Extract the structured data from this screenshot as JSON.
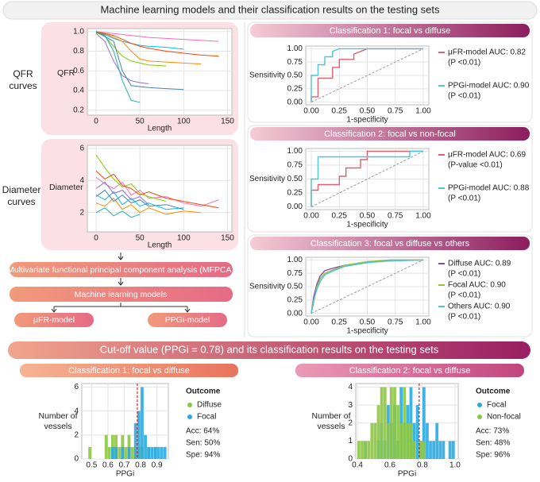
{
  "title": "Machine learning models and their classification results on the testing sets",
  "left": {
    "qfr_label": "QFR curves",
    "diameter_label": "Diameter curves",
    "steps": [
      "Multivariate functional principal component analysis (MFPCA)",
      "Machine learning models"
    ],
    "models": [
      "μFR-model",
      "PPGi-model"
    ]
  },
  "bottom": {
    "title": "Cut-off value (PPGi = 0.78) and its classification results on the testing sets"
  },
  "chart_data": [
    {
      "type": "line",
      "xlabel": "Length",
      "ylabel": "QFR",
      "grid": true,
      "x": [
        0,
        10,
        20,
        30,
        40,
        50,
        60,
        80,
        100,
        120,
        140
      ],
      "xlim": [
        -10,
        155
      ],
      "xticks": [
        0,
        50,
        100,
        150
      ],
      "ylim": [
        0.15,
        1.03
      ],
      "yticks": [
        {
          "value": 1,
          "label": "1.0"
        },
        0.8,
        0.6,
        0.4,
        0.2
      ],
      "series": [
        {
          "color": "#ff69b4",
          "values": [
            1,
            0.99,
            0.98,
            0.97,
            0.96,
            0.95,
            0.94,
            0.93,
            0.92,
            0.91,
            0.9
          ]
        },
        {
          "color": "#00bfff",
          "values": [
            1,
            0.97,
            0.93,
            0.9,
            0.88,
            0.86,
            0.85,
            0.84,
            0.82,
            null,
            null
          ]
        },
        {
          "color": "#7fcf00",
          "values": [
            0.99,
            0.95,
            0.85,
            0.75,
            0.7,
            0.68,
            0.66,
            0.65,
            null,
            null,
            null
          ]
        },
        {
          "color": "#ff8c00",
          "values": [
            1,
            0.98,
            0.94,
            0.9,
            0.8,
            0.72,
            0.7,
            0.69,
            0.68,
            0.67,
            null
          ]
        },
        {
          "color": "#9370db",
          "values": [
            0.98,
            0.9,
            0.7,
            0.55,
            0.5,
            0.48,
            0.47,
            null,
            null,
            null,
            null
          ]
        },
        {
          "color": "#20b2aa",
          "values": [
            1,
            0.96,
            0.8,
            0.5,
            0.3,
            0.28,
            null,
            null,
            null,
            null,
            null
          ]
        },
        {
          "color": "#ff4500",
          "values": [
            0.99,
            0.98,
            0.96,
            0.92,
            0.88,
            0.85,
            0.83,
            0.8,
            0.78,
            0.76,
            0.75
          ]
        },
        {
          "color": "#4682b4",
          "values": [
            1,
            0.95,
            0.9,
            0.6,
            0.45,
            0.44,
            0.43,
            0.42,
            0.41,
            null,
            null
          ]
        }
      ]
    },
    {
      "type": "line",
      "xlabel": "Length",
      "ylabel": "Diameter",
      "grid": true,
      "x": [
        0,
        10,
        20,
        30,
        40,
        50,
        60,
        80,
        100,
        120,
        140
      ],
      "xlim": [
        -10,
        155
      ],
      "xticks": [
        0,
        50,
        100,
        150
      ],
      "ylim": [
        0.8,
        6.2
      ],
      "yticks": [
        6,
        4,
        2
      ],
      "series": [
        {
          "color": "#ff69b4",
          "values": [
            4.2,
            3.8,
            3.5,
            3.9,
            3.1,
            3.4,
            2.9,
            3.0,
            2.6,
            2.4,
            2.8
          ]
        },
        {
          "color": "#00bfff",
          "values": [
            3.1,
            2.8,
            3.3,
            2.5,
            2.9,
            2.4,
            2.6,
            2.2,
            2.3,
            null,
            null
          ]
        },
        {
          "color": "#7fcf00",
          "values": [
            5.6,
            4.8,
            4.1,
            3.6,
            3.8,
            3.2,
            3.0,
            2.7,
            null,
            null,
            null
          ]
        },
        {
          "color": "#ff8c00",
          "values": [
            2.6,
            2.4,
            2.9,
            2.2,
            2.5,
            2.0,
            2.3,
            1.9,
            2.1,
            2.0,
            null
          ]
        },
        {
          "color": "#9370db",
          "values": [
            3.5,
            3.9,
            3.2,
            3.4,
            2.8,
            3.0,
            2.5,
            null,
            null,
            null,
            null
          ]
        },
        {
          "color": "#20b2aa",
          "values": [
            2.0,
            2.3,
            1.8,
            2.1,
            1.7,
            1.9,
            null,
            null,
            null,
            null,
            null
          ]
        },
        {
          "color": "#ff4500",
          "values": [
            4.6,
            4.1,
            4.4,
            3.7,
            3.5,
            3.1,
            3.3,
            2.9,
            2.7,
            2.5,
            2.3
          ]
        },
        {
          "color": "#4682b4",
          "values": [
            3.0,
            3.4,
            2.7,
            3.1,
            2.6,
            2.8,
            2.4,
            2.5,
            2.2,
            null,
            null
          ]
        }
      ]
    },
    {
      "type": "line",
      "title": "Classification 1: focal vs diffuse",
      "xlabel": "1-specificity",
      "ylabel": "Sensitivity",
      "grid": true,
      "diagonal": true,
      "legend": "right",
      "xlim": [
        -0.05,
        1.05
      ],
      "xticks": [
        {
          "value": 0,
          "label": "0.00"
        },
        0.25,
        {
          "value": 0.5,
          "label": "0.50"
        },
        0.75,
        {
          "value": 1,
          "label": "1.00"
        }
      ],
      "ylim": [
        -0.05,
        1.05
      ],
      "yticks": [
        {
          "value": 0,
          "label": "0.00"
        },
        0.25,
        {
          "value": 0.5,
          "label": "0.50"
        },
        0.75,
        {
          "value": 1,
          "label": "1.00"
        }
      ],
      "series": [
        {
          "name": "μFR-model AUC: 0.82",
          "note": "(P <0.01)",
          "color": "#d9626f",
          "x": [
            0,
            0,
            0.06,
            0.06,
            0.19,
            0.19,
            0.25,
            0.25,
            0.38,
            0.38,
            0.5,
            1
          ],
          "values": [
            0,
            0.1,
            0.1,
            0.45,
            0.45,
            0.65,
            0.65,
            0.8,
            0.8,
            0.9,
            1,
            1
          ]
        },
        {
          "name": "PPGi-model AUC: 0.90",
          "note": "(P <0.01)",
          "color": "#4fc3d8",
          "x": [
            0,
            0,
            0.06,
            0.06,
            0.12,
            0.12,
            0.19,
            0.19,
            0.25,
            1
          ],
          "values": [
            0,
            0.5,
            0.5,
            0.7,
            0.7,
            0.85,
            0.85,
            0.95,
            1,
            1
          ]
        }
      ]
    },
    {
      "type": "line",
      "title": "Classification 2: focal vs non-focal",
      "xlabel": "1-specificity",
      "ylabel": "Sensitivity",
      "grid": true,
      "diagonal": true,
      "legend": "right",
      "xlim": [
        -0.05,
        1.05
      ],
      "xticks": [
        {
          "value": 0,
          "label": "0.00"
        },
        0.25,
        {
          "value": 0.5,
          "label": "0.50"
        },
        0.75,
        {
          "value": 1,
          "label": "1.00"
        }
      ],
      "ylim": [
        -0.05,
        1.05
      ],
      "yticks": [
        {
          "value": 0,
          "label": "0.00"
        },
        0.25,
        {
          "value": 0.5,
          "label": "0.50"
        },
        0.75,
        {
          "value": 1,
          "label": "1.00"
        }
      ],
      "series": [
        {
          "name": "μFR-model AUC: 0.69",
          "note": "(P-value <0.01)",
          "color": "#d9626f",
          "x": [
            0,
            0,
            0.06,
            0.06,
            0.25,
            0.25,
            0.31,
            0.31,
            0.44,
            0.44,
            0.5,
            0.5,
            1
          ],
          "values": [
            0,
            0.3,
            0.3,
            0.4,
            0.4,
            0.55,
            0.55,
            0.7,
            0.7,
            0.85,
            0.85,
            1,
            1
          ]
        },
        {
          "name": "PPGi-model AUC: 0.88",
          "note": "(P <0.01)",
          "color": "#4fc3d8",
          "x": [
            0,
            0,
            0.06,
            0.06,
            0.88,
            0.88,
            1
          ],
          "values": [
            0,
            0.5,
            0.5,
            0.9,
            0.9,
            1,
            1
          ]
        }
      ]
    },
    {
      "type": "line",
      "title": "Classification 3: focal vs diffuse vs others",
      "xlabel": "1-specificity",
      "ylabel": "Sensitivity",
      "grid": true,
      "diagonal": true,
      "legend": "right",
      "xlim": [
        -0.05,
        1.05
      ],
      "xticks": [
        {
          "value": 0,
          "label": "0.00"
        },
        0.25,
        {
          "value": 0.5,
          "label": "0.50"
        },
        0.75,
        {
          "value": 1,
          "label": "1.00"
        }
      ],
      "ylim": [
        -0.05,
        1.05
      ],
      "yticks": [
        {
          "value": 0,
          "label": "0.00"
        },
        0.25,
        {
          "value": 0.5,
          "label": "0.50"
        },
        0.75,
        {
          "value": 1,
          "label": "1.00"
        }
      ],
      "series": [
        {
          "name": "Diffuse AUC: 0.89",
          "note": "(P <0.01)",
          "color": "#8e44ad",
          "x": [
            0,
            0.02,
            0.05,
            0.08,
            0.12,
            0.2,
            0.3,
            0.5,
            0.7,
            1
          ],
          "values": [
            0,
            0.3,
            0.55,
            0.7,
            0.8,
            0.85,
            0.9,
            0.95,
            1,
            1
          ]
        },
        {
          "name": "Focal AUC: 0.90",
          "note": "(P <0.01)",
          "color": "#8dc63f",
          "x": [
            0,
            0.02,
            0.05,
            0.08,
            0.12,
            0.2,
            0.3,
            0.5,
            0.7,
            1
          ],
          "values": [
            0,
            0.2,
            0.5,
            0.65,
            0.75,
            0.82,
            0.9,
            0.97,
            1,
            1
          ]
        },
        {
          "name": "Others AUC: 0.90",
          "note": "(P <0.01)",
          "color": "#4fc3d8",
          "x": [
            0,
            0.02,
            0.05,
            0.08,
            0.12,
            0.2,
            0.3,
            0.5,
            0.7,
            1
          ],
          "values": [
            0,
            0.25,
            0.45,
            0.6,
            0.72,
            0.8,
            0.88,
            0.95,
            0.98,
            1
          ]
        }
      ]
    },
    {
      "type": "histogram",
      "title": "Classification 1: focal vs diffuse",
      "xlabel": "PPGi",
      "ylabel": "Number of vessels",
      "grid": true,
      "legend_title": "Outcome",
      "cutoff": 0.78,
      "stats": [
        "Acc: 64%",
        "Sen: 50%",
        "Spe: 94%"
      ],
      "bins": [
        0.46,
        0.48,
        0.5,
        0.52,
        0.54,
        0.56,
        0.58,
        0.6,
        0.62,
        0.64,
        0.66,
        0.68,
        0.7,
        0.72,
        0.74,
        0.76,
        0.78,
        0.8,
        0.82,
        0.84,
        0.86,
        0.88,
        0.9,
        0.92,
        0.94,
        0.96
      ],
      "xlim": [
        0.44,
        0.97
      ],
      "xticks": [
        0.5,
        0.6,
        0.7,
        0.8,
        0.9
      ],
      "ylim": [
        0,
        6.3
      ],
      "yticks": [
        0,
        2,
        4,
        6
      ],
      "series": [
        {
          "name": "Diffuse",
          "color": "#8dc63f",
          "values": [
            0,
            1,
            0,
            0,
            0,
            0,
            2,
            1,
            2,
            2,
            1,
            2,
            1,
            2,
            1,
            1,
            1,
            1,
            0,
            1,
            0,
            1,
            0,
            0,
            0
          ]
        },
        {
          "name": "Focal",
          "color": "#29abe2",
          "values": [
            0,
            0,
            0,
            0,
            0,
            0,
            0,
            0,
            1,
            1,
            0,
            1,
            0,
            1,
            0,
            3,
            4,
            6,
            2,
            1,
            1,
            1,
            1,
            1,
            1
          ]
        }
      ]
    },
    {
      "type": "histogram",
      "title": "Classification 2: focal vs diffuse",
      "xlabel": "PPGi",
      "ylabel": "Number of vessels",
      "grid": true,
      "legend_title": "Outcome",
      "cutoff": 0.78,
      "stats": [
        "Acc: 73%",
        "Sen: 48%",
        "Spe: 96%"
      ],
      "bins": [
        0.4,
        0.42,
        0.44,
        0.46,
        0.48,
        0.5,
        0.52,
        0.54,
        0.56,
        0.58,
        0.6,
        0.62,
        0.64,
        0.66,
        0.68,
        0.7,
        0.72,
        0.74,
        0.76,
        0.78,
        0.8,
        0.82,
        0.84,
        0.86,
        0.88,
        0.9,
        0.92,
        0.94,
        0.96,
        0.98,
        1
      ],
      "xlim": [
        0.39,
        1.02
      ],
      "xticks": [
        0.4,
        0.6,
        0.8,
        {
          "value": 1,
          "label": "1.0"
        }
      ],
      "ylim": [
        0,
        4.2
      ],
      "yticks": [
        0,
        1,
        2,
        3,
        4
      ],
      "series": [
        {
          "name": "Focal",
          "color": "#29abe2",
          "values": [
            0,
            0,
            1,
            0,
            0,
            0,
            1,
            2,
            1,
            3,
            2,
            3,
            1,
            4,
            2,
            3,
            4,
            2,
            3,
            1,
            4,
            2,
            1,
            1,
            2,
            1,
            1,
            0,
            1,
            1
          ]
        },
        {
          "name": "Non-focal",
          "color": "#8dc63f",
          "values": [
            1,
            1,
            1,
            1,
            2,
            2,
            3,
            4,
            4,
            2,
            4,
            4,
            3,
            2,
            4,
            2,
            2,
            1,
            0,
            1,
            1,
            0,
            0,
            0,
            0,
            0,
            0,
            0,
            0,
            0
          ]
        }
      ]
    }
  ]
}
